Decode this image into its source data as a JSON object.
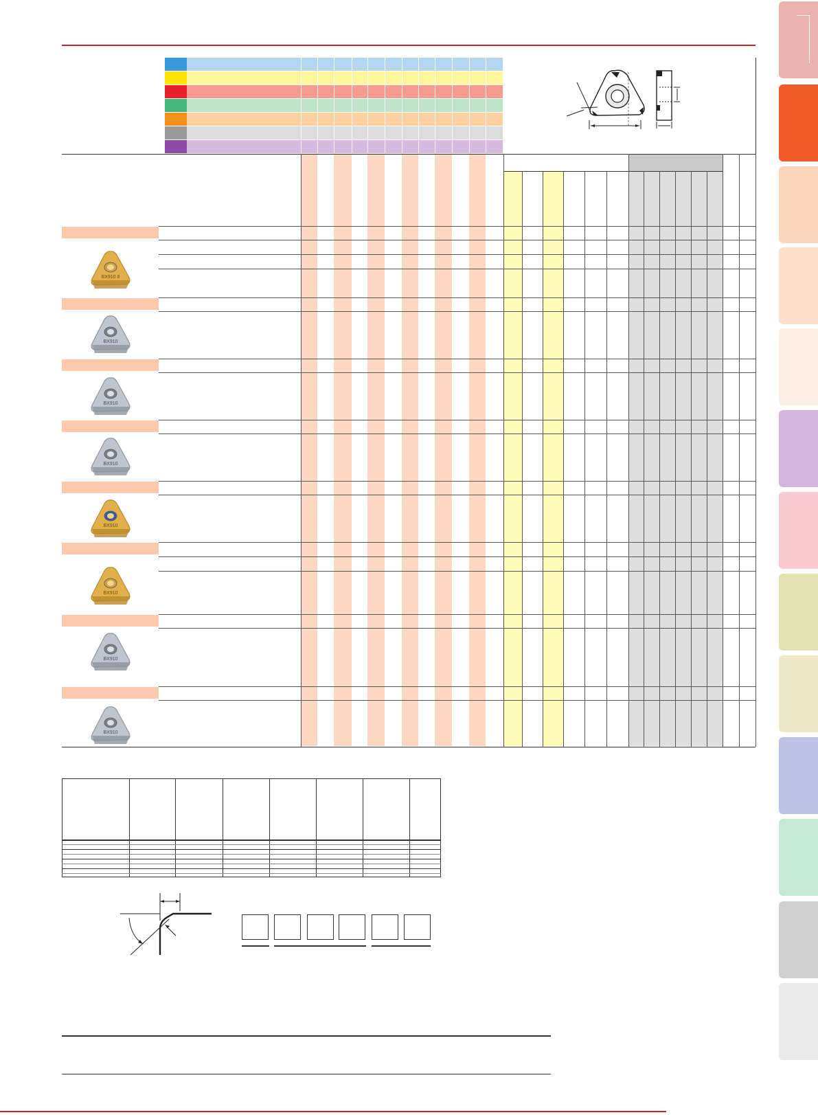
{
  "colors": {
    "accent_red": "#c8232c",
    "peach_stripe": "#fcd8c2",
    "yellow_stripe": "#fffbb8",
    "grey_header": "#d6d6d6",
    "group_bar": "#fcc9ad"
  },
  "material_rows": [
    {
      "name": "material-p",
      "swatch": "#3a9ad9",
      "band": "#b5d4ee"
    },
    {
      "name": "material-m",
      "swatch": "#ffe600",
      "band": "#fff59a"
    },
    {
      "name": "material-k",
      "swatch": "#e8202b",
      "band": "#f59b8f"
    },
    {
      "name": "material-n",
      "swatch": "#43b87a",
      "band": "#bde4c9"
    },
    {
      "name": "material-s",
      "swatch": "#f39019",
      "band": "#fdd19f"
    },
    {
      "name": "material-h",
      "swatch": "#9a9a9a",
      "band": "#dcdcdc"
    },
    {
      "name": "material-o",
      "swatch": "#8d49a8",
      "band": "#d7b9df"
    }
  ],
  "insert_groups": [
    {
      "name": "group-1",
      "color": "gold"
    },
    {
      "name": "group-2",
      "color": "silver"
    },
    {
      "name": "group-3",
      "color": "silver"
    },
    {
      "name": "group-4",
      "color": "silver"
    },
    {
      "name": "group-5",
      "color": "gold"
    },
    {
      "name": "group-6",
      "color": "gold"
    },
    {
      "name": "group-7",
      "color": "silver"
    },
    {
      "name": "group-8",
      "color": "silver"
    }
  ],
  "insert_labels": {
    "gold_a": "BX910 8",
    "gold_b": "BX910",
    "silver": "BX910"
  },
  "side_tabs": [
    "#ecb3ae",
    "#f15a29",
    "#fcd5bd",
    "#fde0cc",
    "#fdeee3",
    "#d7b4de",
    "#f9cbd0",
    "#e3e2b2",
    "#ede9c8",
    "#bdc3e6",
    "#c6e8d6",
    "#cfcfcf",
    "#e9e9e9"
  ],
  "icons": [
    "insert-top-view-diagram",
    "insert-side-view-diagram",
    "chamfer-edge-diagram"
  ]
}
